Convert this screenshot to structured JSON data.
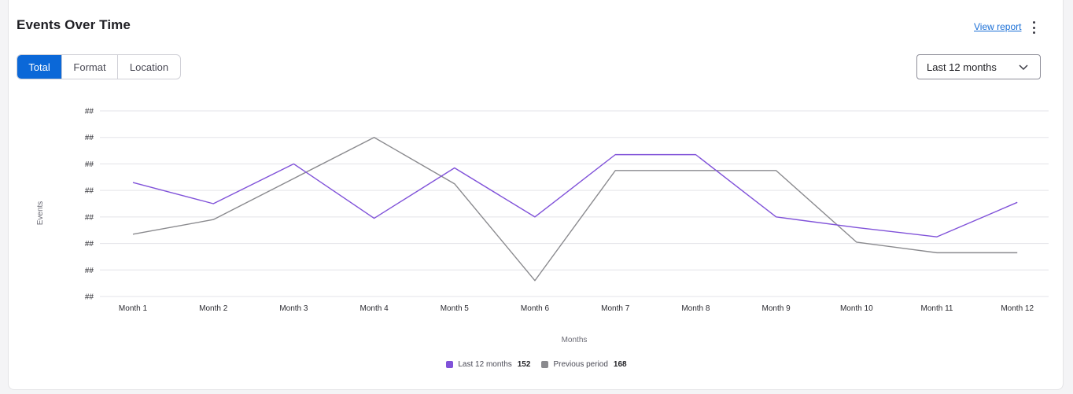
{
  "header": {
    "title": "Events Over Time",
    "view_report_label": "View report"
  },
  "tabs": [
    {
      "label": "Total",
      "active": true
    },
    {
      "label": "Format",
      "active": false
    },
    {
      "label": "Location",
      "active": false
    }
  ],
  "range_select": {
    "value": "Last 12 months"
  },
  "legend": [
    {
      "name": "Last 12 months",
      "count": "152",
      "color": "#8052d9"
    },
    {
      "name": "Previous period",
      "count": "168",
      "color": "#8a8a8e"
    }
  ],
  "chart_data": {
    "type": "line",
    "xlabel": "Months",
    "ylabel": "Events",
    "categories": [
      "Month 1",
      "Month 2",
      "Month 3",
      "Month 4",
      "Month 5",
      "Month 6",
      "Month 7",
      "Month 8",
      "Month 9",
      "Month 10",
      "Month 11",
      "Month 12"
    ],
    "y_tick_labels": [
      "##",
      "##",
      "##",
      "##",
      "##",
      "##",
      "##",
      "##"
    ],
    "ylim": [
      0,
      7
    ],
    "grid": true,
    "legend_position": "bottom-center",
    "series": [
      {
        "name": "Last 12 months",
        "color": "#8052d9",
        "values": [
          4.3,
          3.5,
          5.0,
          2.95,
          4.85,
          3.0,
          5.35,
          5.35,
          3.0,
          2.6,
          2.25,
          3.55
        ]
      },
      {
        "name": "Previous period",
        "color": "#8a8a8e",
        "values": [
          2.35,
          2.9,
          4.45,
          6.0,
          4.25,
          0.6,
          4.75,
          4.75,
          4.75,
          2.05,
          1.65,
          1.65
        ]
      }
    ]
  }
}
